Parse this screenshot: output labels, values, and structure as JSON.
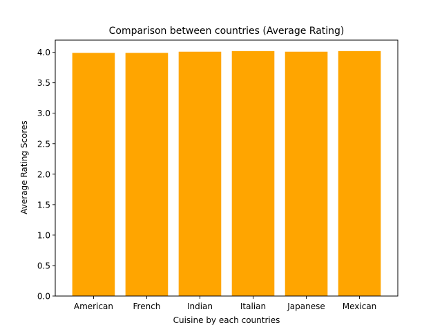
{
  "chart_data": {
    "type": "bar",
    "title": "Comparison between countries (Average Rating)",
    "xlabel": "Cuisine by each countries",
    "ylabel": "Average Rating Scores",
    "categories": [
      "American",
      "French",
      "Indian",
      "Italian",
      "Japanese",
      "Mexican"
    ],
    "values": [
      3.99,
      3.99,
      4.01,
      4.02,
      4.01,
      4.02
    ],
    "ylim": [
      0,
      4.2
    ],
    "yticks": [
      0.0,
      0.5,
      1.0,
      1.5,
      2.0,
      2.5,
      3.0,
      3.5,
      4.0
    ],
    "ytick_labels": [
      "0.0",
      "0.5",
      "1.0",
      "1.5",
      "2.0",
      "2.5",
      "3.0",
      "3.5",
      "4.0"
    ],
    "grid": false,
    "bar_color": "#ffa500"
  }
}
